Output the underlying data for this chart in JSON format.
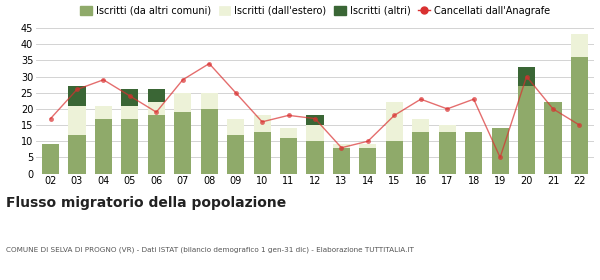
{
  "years": [
    "02",
    "03",
    "04",
    "05",
    "06",
    "07",
    "08",
    "09",
    "10",
    "11",
    "12",
    "13",
    "14",
    "15",
    "16",
    "17",
    "18",
    "19",
    "20",
    "21",
    "22"
  ],
  "iscritti_altri_comuni": [
    9,
    12,
    17,
    17,
    18,
    19,
    20,
    12,
    13,
    11,
    10,
    8,
    8,
    10,
    13,
    13,
    13,
    14,
    27,
    22,
    36
  ],
  "iscritti_estero": [
    0,
    9,
    4,
    4,
    4,
    6,
    5,
    5,
    5,
    3,
    5,
    1,
    1,
    12,
    4,
    2,
    0,
    0,
    0,
    0,
    7
  ],
  "iscritti_altri": [
    0,
    6,
    0,
    5,
    4,
    0,
    0,
    0,
    0,
    0,
    3,
    0,
    0,
    0,
    0,
    0,
    0,
    0,
    6,
    0,
    0
  ],
  "cancellati": [
    17,
    26,
    29,
    24,
    19,
    29,
    34,
    25,
    16,
    18,
    17,
    8,
    10,
    18,
    23,
    20,
    23,
    5,
    30,
    20,
    15
  ],
  "color_altri_comuni": "#8faa6a",
  "color_estero": "#edf2d8",
  "color_altri": "#3a6635",
  "color_cancellati": "#d93030",
  "ylim": [
    0,
    45
  ],
  "yticks": [
    0,
    5,
    10,
    15,
    20,
    25,
    30,
    35,
    40,
    45
  ],
  "title": "Flusso migratorio della popolazione",
  "subtitle": "COMUNE DI SELVA DI PROGNO (VR) - Dati ISTAT (bilancio demografico 1 gen-31 dic) - Elaborazione TUTTITALIA.IT",
  "legend_labels": [
    "Iscritti (da altri comuni)",
    "Iscritti (dall'estero)",
    "Iscritti (altri)",
    "Cancellati dall'Anagrafe"
  ],
  "background_color": "#ffffff",
  "grid_color": "#cccccc"
}
